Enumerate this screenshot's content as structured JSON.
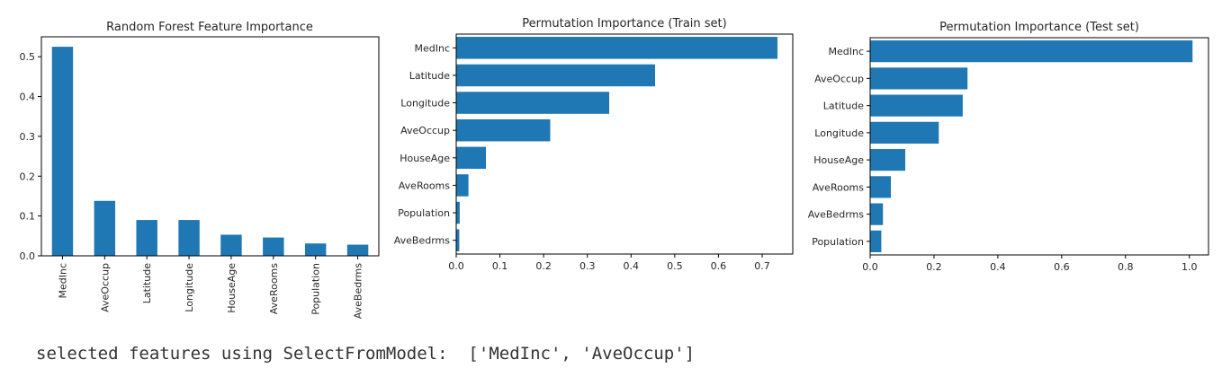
{
  "colors": {
    "bar": "#1f77b4",
    "axis": "#000000",
    "text": "#262626"
  },
  "chart_data": [
    {
      "type": "bar",
      "title": "Random Forest Feature Importance",
      "xlabel": "",
      "ylabel": "",
      "categories": [
        "MedInc",
        "AveOccup",
        "Latitude",
        "Longitude",
        "HouseAge",
        "AveRooms",
        "Population",
        "AveBedrms"
      ],
      "values": [
        0.525,
        0.138,
        0.09,
        0.09,
        0.053,
        0.046,
        0.031,
        0.028
      ],
      "ylim": [
        0,
        0.55
      ],
      "yticks": [
        "0.0",
        "0.1",
        "0.2",
        "0.3",
        "0.4",
        "0.5"
      ],
      "ytick_values": [
        0,
        0.1,
        0.2,
        0.3,
        0.4,
        0.5
      ],
      "grid": false
    },
    {
      "type": "bar",
      "orientation": "horizontal",
      "title": "Permutation Importance (Train set)",
      "xlabel": "",
      "ylabel": "",
      "categories": [
        "MedInc",
        "Latitude",
        "Longitude",
        "AveOccup",
        "HouseAge",
        "AveRooms",
        "Population",
        "AveBedrms"
      ],
      "values": [
        0.735,
        0.455,
        0.35,
        0.215,
        0.068,
        0.028,
        0.008,
        0.007
      ],
      "xlim": [
        0,
        0.77
      ],
      "xticks": [
        "0.0",
        "0.1",
        "0.2",
        "0.3",
        "0.4",
        "0.5",
        "0.6",
        "0.7"
      ],
      "xtick_values": [
        0,
        0.1,
        0.2,
        0.3,
        0.4,
        0.5,
        0.6,
        0.7
      ],
      "grid": false
    },
    {
      "type": "bar",
      "orientation": "horizontal",
      "title": "Permutation Importance (Test set)",
      "xlabel": "",
      "ylabel": "",
      "categories": [
        "MedInc",
        "AveOccup",
        "Latitude",
        "Longitude",
        "HouseAge",
        "AveRooms",
        "AveBedrms",
        "Population"
      ],
      "values": [
        1.01,
        0.305,
        0.29,
        0.215,
        0.11,
        0.065,
        0.04,
        0.035
      ],
      "xlim": [
        0,
        1.06
      ],
      "xticks": [
        "0.0",
        "0.2",
        "0.4",
        "0.6",
        "0.8",
        "1.0"
      ],
      "xtick_values": [
        0,
        0.2,
        0.4,
        0.6,
        0.8,
        1.0
      ],
      "grid": false
    }
  ],
  "output": {
    "text": "selected features using SelectFromModel:  ['MedInc', 'AveOccup']"
  }
}
